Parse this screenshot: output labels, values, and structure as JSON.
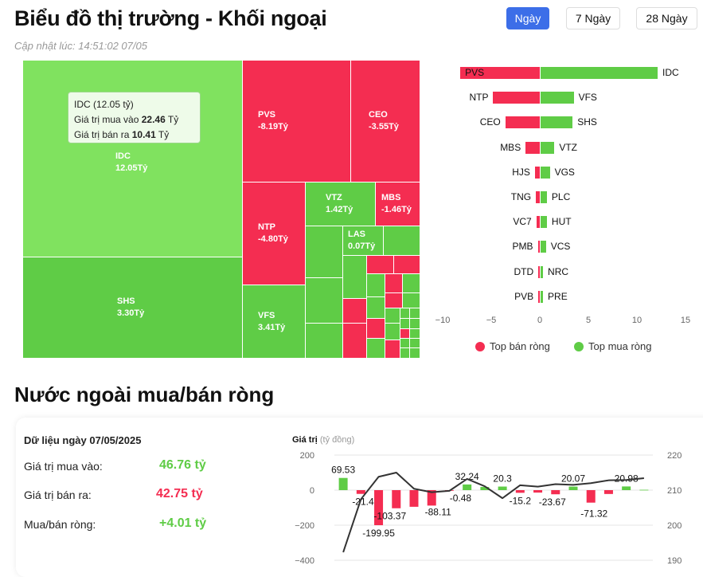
{
  "header": {
    "title": "Biểu đồ thị trường - Khối ngoại",
    "updated": "Cập nhật lúc: 14:51:02 07/05",
    "buttons": [
      {
        "label": "Ngày",
        "active": true
      },
      {
        "label": "7 Ngày",
        "active": false
      },
      {
        "label": "28 Ngày",
        "active": false
      }
    ]
  },
  "colors": {
    "buy": "#5fcc46",
    "sell": "#f42d51",
    "accent": "#3c6ee8"
  },
  "treemap": {
    "tiles": [
      {
        "ticker": "IDC",
        "value": "12.05Tỷ"
      },
      {
        "ticker": "SHS",
        "value": "3.30Tỷ"
      },
      {
        "ticker": "PVS",
        "value": "-8.19Tỷ"
      },
      {
        "ticker": "CEO",
        "value": "-3.55Tỷ"
      },
      {
        "ticker": "NTP",
        "value": "-4.80Tỷ"
      },
      {
        "ticker": "VFS",
        "value": "3.41Tỷ"
      },
      {
        "ticker": "VTZ",
        "value": "1.42Tỷ"
      },
      {
        "ticker": "MBS",
        "value": "-1.46Tỷ"
      },
      {
        "ticker": "LAS",
        "value": "0.07Tỷ"
      }
    ],
    "tooltip": {
      "title": "IDC (12.05 tỷ)",
      "buy_label": "Giá trị mua vào",
      "buy_value": "22.46",
      "sell_label": "Giá trị bán ra",
      "sell_value": "10.41",
      "unit": "Tỷ"
    }
  },
  "chart_data": [
    {
      "type": "bar",
      "orientation": "horizontal",
      "xlim": [
        -10,
        15
      ],
      "xticks": [
        "−10",
        "−5",
        "0",
        "5",
        "10",
        "15"
      ],
      "legend": [
        "Top bán ròng",
        "Top mua ròng"
      ],
      "legend_position": "bottom",
      "sell": [
        {
          "ticker": "PVS",
          "value": -8.19
        },
        {
          "ticker": "NTP",
          "value": -4.8
        },
        {
          "ticker": "CEO",
          "value": -3.55
        },
        {
          "ticker": "MBS",
          "value": -1.46
        },
        {
          "ticker": "HJS",
          "value": -0.5
        },
        {
          "ticker": "TNG",
          "value": -0.4
        },
        {
          "ticker": "VC7",
          "value": -0.35
        },
        {
          "ticker": "PMB",
          "value": -0.2
        },
        {
          "ticker": "DTD",
          "value": -0.15
        },
        {
          "ticker": "PVB",
          "value": -0.15
        }
      ],
      "buy": [
        {
          "ticker": "IDC",
          "value": 12.05
        },
        {
          "ticker": "VFS",
          "value": 3.41
        },
        {
          "ticker": "SHS",
          "value": 3.3
        },
        {
          "ticker": "VTZ",
          "value": 1.42
        },
        {
          "ticker": "VGS",
          "value": 0.95
        },
        {
          "ticker": "PLC",
          "value": 0.65
        },
        {
          "ticker": "HUT",
          "value": 0.65
        },
        {
          "ticker": "VCS",
          "value": 0.55
        },
        {
          "ticker": "NRC",
          "value": 0.25
        },
        {
          "ticker": "PRE",
          "value": 0.25
        }
      ]
    },
    {
      "type": "bar+line",
      "ylabel": "Giá trị",
      "yunit": "(tỷ đồng)",
      "ylim": [
        -400,
        200
      ],
      "yticks": [
        "200",
        "0",
        "−200",
        "−400"
      ],
      "y2lim": [
        190,
        220
      ],
      "y2ticks": [
        "220",
        "210",
        "200",
        "190"
      ],
      "bars": [
        69.53,
        -21.43,
        -199.95,
        -103.37,
        -95,
        -88.11,
        -0.48,
        32.24,
        18,
        20.3,
        -15.2,
        -14,
        -23.67,
        20.07,
        -71.32,
        -22,
        20.98,
        2
      ],
      "labels": [
        "69.53",
        "-21.43",
        "-199.95",
        "-103.37",
        "",
        "-88.11",
        "-0.48",
        "32.24",
        "",
        "20.3",
        "-15.2",
        "",
        "-23.67",
        "20.07",
        "-71.32",
        "",
        "20.98",
        ""
      ],
      "line": [
        192.3,
        207.4,
        213.8,
        215,
        210.4,
        209.4,
        209.8,
        213.2,
        211.1,
        207.7,
        211.4,
        211,
        211.7,
        211.5,
        212,
        212.8,
        212.9,
        213.4
      ]
    }
  ],
  "summary": {
    "title": "Nước ngoài mua/bán ròng",
    "date_label": "Dữ liệu ngày 07/05/2025",
    "rows": [
      {
        "label": "Giá trị mua vào:",
        "value": "46.76 tỷ"
      },
      {
        "label": "Giá trị bán ra:",
        "value": "42.75 tỷ"
      },
      {
        "label": "Mua/bán ròng:",
        "value": "+4.01 tỷ"
      }
    ]
  }
}
